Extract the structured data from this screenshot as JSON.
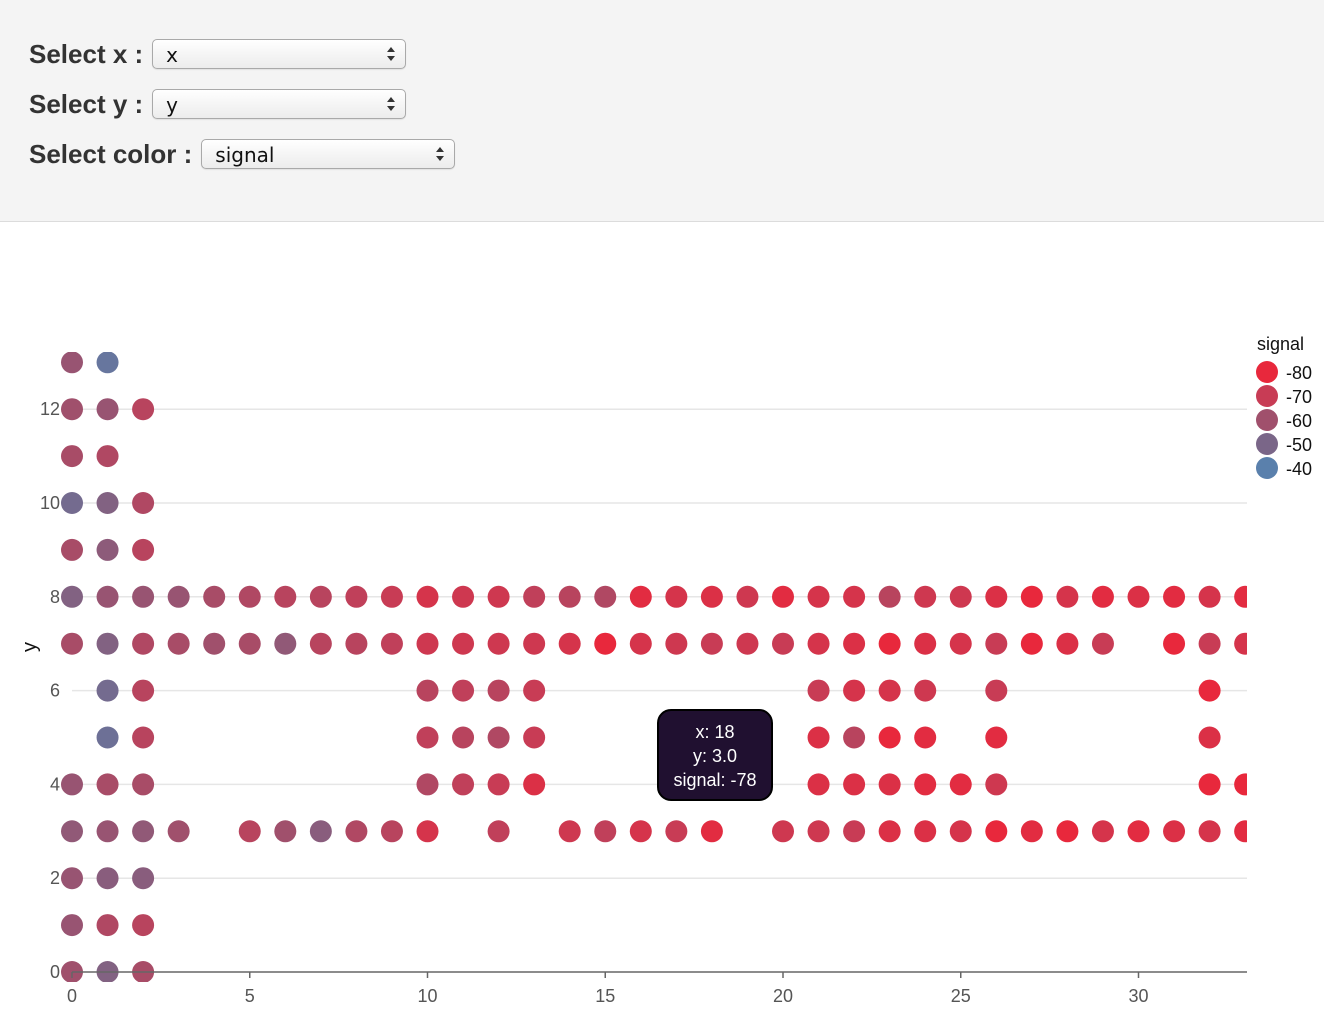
{
  "controls": {
    "x_label": "Select x :",
    "x_value": "x",
    "y_label": "Select y :",
    "y_value": "y",
    "color_label": "Select color :",
    "color_value": "signal"
  },
  "tooltip": {
    "line1": "x: 18",
    "line2": "y: 3.0",
    "line3": "signal: -78"
  },
  "chart_data": {
    "type": "scatter",
    "xlabel": "",
    "ylabel": "y",
    "xlim": [
      0,
      33
    ],
    "ylim": [
      0,
      13
    ],
    "x_ticks": [
      0,
      5,
      10,
      15,
      20,
      25,
      30
    ],
    "y_ticks": [
      0,
      2,
      4,
      6,
      8,
      10,
      12
    ],
    "y_grid": true,
    "color_field": "signal",
    "legend": {
      "title": "signal",
      "placement": "top-right",
      "entries": [
        {
          "label": "-80",
          "color": "#e8283c"
        },
        {
          "label": "-70",
          "color": "#c83c55"
        },
        {
          "label": "-60",
          "color": "#a0506c"
        },
        {
          "label": "-50",
          "color": "#7a6688"
        },
        {
          "label": "-40",
          "color": "#5a80ac"
        }
      ]
    },
    "points": [
      [
        0,
        13,
        -58
      ],
      [
        1,
        13,
        -44
      ],
      [
        0,
        12,
        -60
      ],
      [
        1,
        12,
        -58
      ],
      [
        2,
        12,
        -66
      ],
      [
        0,
        11,
        -62
      ],
      [
        1,
        11,
        -64
      ],
      [
        0,
        10,
        -48
      ],
      [
        1,
        10,
        -52
      ],
      [
        2,
        10,
        -64
      ],
      [
        0,
        9,
        -62
      ],
      [
        1,
        9,
        -55
      ],
      [
        2,
        9,
        -66
      ],
      [
        0,
        8,
        -52
      ],
      [
        1,
        8,
        -58
      ],
      [
        2,
        8,
        -58
      ],
      [
        3,
        8,
        -58
      ],
      [
        4,
        8,
        -62
      ],
      [
        5,
        8,
        -64
      ],
      [
        6,
        8,
        -66
      ],
      [
        7,
        8,
        -66
      ],
      [
        8,
        8,
        -68
      ],
      [
        9,
        8,
        -70
      ],
      [
        10,
        8,
        -74
      ],
      [
        11,
        8,
        -72
      ],
      [
        12,
        8,
        -72
      ],
      [
        13,
        8,
        -68
      ],
      [
        14,
        8,
        -66
      ],
      [
        15,
        8,
        -64
      ],
      [
        16,
        8,
        -78
      ],
      [
        17,
        8,
        -74
      ],
      [
        18,
        8,
        -76
      ],
      [
        19,
        8,
        -72
      ],
      [
        20,
        8,
        -78
      ],
      [
        21,
        8,
        -74
      ],
      [
        22,
        8,
        -74
      ],
      [
        23,
        8,
        -66
      ],
      [
        24,
        8,
        -72
      ],
      [
        25,
        8,
        -72
      ],
      [
        26,
        8,
        -76
      ],
      [
        27,
        8,
        -80
      ],
      [
        28,
        8,
        -74
      ],
      [
        29,
        8,
        -78
      ],
      [
        30,
        8,
        -76
      ],
      [
        31,
        8,
        -78
      ],
      [
        32,
        8,
        -74
      ],
      [
        33,
        8,
        -78
      ],
      [
        0,
        7,
        -62
      ],
      [
        1,
        7,
        -52
      ],
      [
        2,
        7,
        -64
      ],
      [
        3,
        7,
        -62
      ],
      [
        4,
        7,
        -60
      ],
      [
        5,
        7,
        -62
      ],
      [
        6,
        7,
        -56
      ],
      [
        7,
        7,
        -66
      ],
      [
        8,
        7,
        -66
      ],
      [
        9,
        7,
        -68
      ],
      [
        10,
        7,
        -72
      ],
      [
        11,
        7,
        -72
      ],
      [
        12,
        7,
        -72
      ],
      [
        13,
        7,
        -72
      ],
      [
        14,
        7,
        -74
      ],
      [
        15,
        7,
        -82
      ],
      [
        16,
        7,
        -74
      ],
      [
        17,
        7,
        -72
      ],
      [
        18,
        7,
        -70
      ],
      [
        19,
        7,
        -72
      ],
      [
        20,
        7,
        -70
      ],
      [
        21,
        7,
        -74
      ],
      [
        22,
        7,
        -76
      ],
      [
        23,
        7,
        -80
      ],
      [
        24,
        7,
        -76
      ],
      [
        25,
        7,
        -74
      ],
      [
        26,
        7,
        -70
      ],
      [
        27,
        7,
        -80
      ],
      [
        28,
        7,
        -76
      ],
      [
        29,
        7,
        -70
      ],
      [
        31,
        7,
        -82
      ],
      [
        32,
        7,
        -70
      ],
      [
        33,
        7,
        -74
      ],
      [
        1,
        6,
        -48
      ],
      [
        2,
        6,
        -66
      ],
      [
        10,
        6,
        -66
      ],
      [
        11,
        6,
        -68
      ],
      [
        12,
        6,
        -66
      ],
      [
        13,
        6,
        -70
      ],
      [
        21,
        6,
        -70
      ],
      [
        22,
        6,
        -74
      ],
      [
        23,
        6,
        -74
      ],
      [
        24,
        6,
        -72
      ],
      [
        26,
        6,
        -70
      ],
      [
        32,
        6,
        -82
      ],
      [
        1,
        5,
        -46
      ],
      [
        2,
        5,
        -66
      ],
      [
        10,
        5,
        -68
      ],
      [
        11,
        5,
        -66
      ],
      [
        12,
        5,
        -64
      ],
      [
        13,
        5,
        -70
      ],
      [
        21,
        5,
        -76
      ],
      [
        22,
        5,
        -66
      ],
      [
        23,
        5,
        -80
      ],
      [
        24,
        5,
        -78
      ],
      [
        26,
        5,
        -78
      ],
      [
        32,
        5,
        -76
      ],
      [
        0,
        4,
        -58
      ],
      [
        1,
        4,
        -62
      ],
      [
        2,
        4,
        -62
      ],
      [
        10,
        4,
        -64
      ],
      [
        11,
        4,
        -68
      ],
      [
        12,
        4,
        -70
      ],
      [
        13,
        4,
        -76
      ],
      [
        21,
        4,
        -76
      ],
      [
        22,
        4,
        -76
      ],
      [
        23,
        4,
        -76
      ],
      [
        24,
        4,
        -78
      ],
      [
        25,
        4,
        -78
      ],
      [
        26,
        4,
        -72
      ],
      [
        32,
        4,
        -82
      ],
      [
        33,
        4,
        -82
      ],
      [
        0,
        3,
        -56
      ],
      [
        1,
        3,
        -58
      ],
      [
        2,
        3,
        -56
      ],
      [
        3,
        3,
        -60
      ],
      [
        5,
        3,
        -66
      ],
      [
        6,
        3,
        -60
      ],
      [
        7,
        3,
        -54
      ],
      [
        8,
        3,
        -64
      ],
      [
        9,
        3,
        -66
      ],
      [
        10,
        3,
        -74
      ],
      [
        12,
        3,
        -68
      ],
      [
        14,
        3,
        -72
      ],
      [
        15,
        3,
        -68
      ],
      [
        16,
        3,
        -74
      ],
      [
        17,
        3,
        -70
      ],
      [
        18,
        3,
        -78
      ],
      [
        20,
        3,
        -72
      ],
      [
        21,
        3,
        -72
      ],
      [
        22,
        3,
        -70
      ],
      [
        23,
        3,
        -76
      ],
      [
        24,
        3,
        -76
      ],
      [
        25,
        3,
        -74
      ],
      [
        26,
        3,
        -80
      ],
      [
        27,
        3,
        -78
      ],
      [
        28,
        3,
        -80
      ],
      [
        29,
        3,
        -74
      ],
      [
        30,
        3,
        -78
      ],
      [
        31,
        3,
        -76
      ],
      [
        32,
        3,
        -74
      ],
      [
        33,
        3,
        -78
      ],
      [
        0,
        2,
        -58
      ],
      [
        1,
        2,
        -54
      ],
      [
        2,
        2,
        -54
      ],
      [
        0,
        1,
        -58
      ],
      [
        1,
        1,
        -64
      ],
      [
        2,
        1,
        -66
      ],
      [
        0,
        0,
        -60
      ],
      [
        1,
        0,
        -52
      ],
      [
        2,
        0,
        -62
      ]
    ]
  }
}
